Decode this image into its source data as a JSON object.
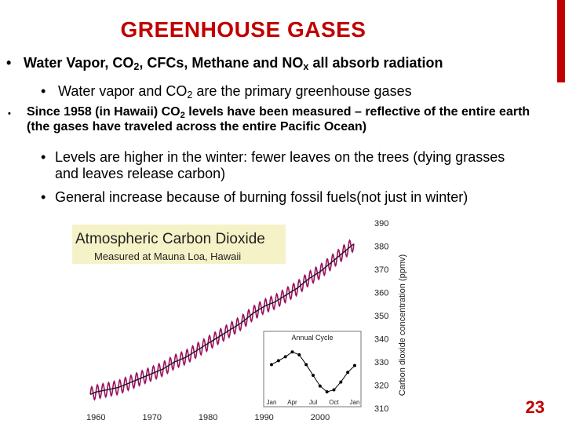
{
  "slide": {
    "title": "GREENHOUSE GASES",
    "page_number": "23",
    "accent_color": "#c00000"
  },
  "bullets": {
    "b1": {
      "marker": "•",
      "t1": "Water Vapor, CO",
      "s1": "2",
      "t2": ", CFCs, Methane and NO",
      "s2": "x",
      "t3": " all absorb radiation"
    },
    "b2": {
      "marker": "•",
      "t1": "Water vapor and CO",
      "s1": "2",
      "t2": " are the primary greenhouse gases"
    },
    "b3": {
      "marker": "•",
      "t1": "Since 1958 (in Hawaii) CO",
      "s1": "2",
      "t2": " levels have been measured – reflective of the entire earth (the gases have traveled across the entire Pacific Ocean)"
    },
    "b4": {
      "marker": "•",
      "text": "Levels are higher in the winter: fewer leaves on the trees (dying grasses and leaves release carbon)"
    },
    "b5": {
      "marker": "•",
      "text": "General increase because of burning fossil fuels(not just in winter)"
    }
  },
  "chart_data": [
    {
      "type": "line",
      "title": "Atmospheric Carbon Dioxide",
      "subtitle": "Measured at Mauna Loa, Hawaii",
      "ylabel": "Carbon dioxide concentration (ppmv)",
      "xlabel": "",
      "x_ticks": [
        "1960",
        "1970",
        "1980",
        "1990",
        "2000"
      ],
      "y_ticks": [
        "310",
        "320",
        "330",
        "340",
        "350",
        "360",
        "370",
        "380",
        "390"
      ],
      "xlim": [
        1958,
        2007
      ],
      "ylim": [
        310,
        390
      ],
      "grid": false,
      "series": [
        {
          "color": "#9c1060",
          "x": [
            1959,
            1960,
            1962,
            1964,
            1966,
            1968,
            1970,
            1972,
            1974,
            1976,
            1978,
            1980,
            1982,
            1984,
            1986,
            1988,
            1990,
            1992,
            1994,
            1996,
            1998,
            2000,
            2002,
            2004,
            2006
          ],
          "y": [
            316,
            317,
            318,
            319,
            321,
            323,
            325,
            327,
            330,
            332,
            335,
            338,
            341,
            344,
            347,
            351,
            354,
            356,
            359,
            362,
            366,
            369,
            373,
            377,
            381
          ],
          "seasonal_amplitude": 3
        }
      ]
    },
    {
      "type": "line",
      "title": "Annual Cycle",
      "x_ticks": [
        "Jan",
        "Apr",
        "Jul",
        "Oct",
        "Jan"
      ],
      "grid": false,
      "series": [
        {
          "color": "#000000",
          "x": [
            0,
            1,
            2,
            3,
            4,
            5,
            6,
            7,
            8,
            9,
            10,
            11,
            12
          ],
          "y": [
            0.2,
            0.6,
            1.0,
            1.5,
            1.2,
            0.2,
            -0.9,
            -2.0,
            -2.6,
            -2.4,
            -1.6,
            -0.6,
            0.1
          ]
        }
      ]
    }
  ]
}
